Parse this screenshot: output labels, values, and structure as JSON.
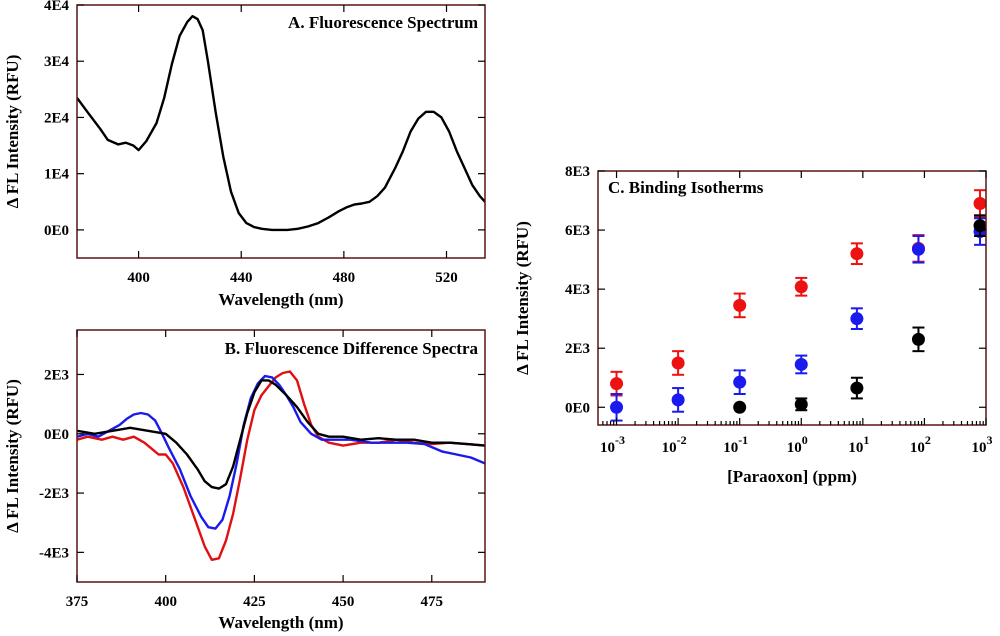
{
  "chart_data": [
    {
      "id": "A",
      "type": "line",
      "title": "A. Fluorescence Spectrum",
      "xlabel": "Wavelength (nm)",
      "ylabel": "Δ FL Intensity (RFU)",
      "xlim": [
        376,
        535
      ],
      "ylim": [
        -5000,
        40000
      ],
      "xticks": [
        400,
        440,
        480,
        520
      ],
      "xtick_labels": [
        "400",
        "440",
        "480",
        "520"
      ],
      "yticks": [
        0,
        10000,
        20000,
        30000,
        40000
      ],
      "ytick_labels": [
        "0E0",
        "1E4",
        "2E4",
        "3E4",
        "4E4"
      ],
      "grid": false,
      "series": [
        {
          "color": "#000000",
          "x": [
            376,
            380,
            385,
            388,
            392,
            395,
            398,
            400,
            403,
            407,
            410,
            413,
            416,
            419,
            421,
            423,
            425,
            427,
            430,
            433,
            436,
            439,
            442,
            445,
            448,
            452,
            455,
            458,
            462,
            466,
            470,
            474,
            478,
            481,
            484,
            487,
            490,
            493,
            496,
            500,
            503,
            506,
            509,
            512,
            515,
            518,
            521,
            524,
            527,
            530,
            533,
            535
          ],
          "y": [
            23500,
            21000,
            18000,
            16000,
            15200,
            15500,
            15000,
            14200,
            15800,
            19000,
            23500,
            29500,
            34500,
            37000,
            38000,
            37500,
            35500,
            30000,
            21000,
            13000,
            6800,
            3000,
            1200,
            500,
            200,
            0,
            0,
            0,
            200,
            600,
            1200,
            2200,
            3300,
            4000,
            4500,
            4700,
            5000,
            6000,
            7500,
            11000,
            14000,
            17500,
            19800,
            21000,
            21000,
            20000,
            17500,
            14000,
            11000,
            8000,
            6000,
            5000
          ]
        }
      ]
    },
    {
      "id": "B",
      "type": "line",
      "title": "B. Fluorescence Difference Spectra",
      "xlabel": "Wavelength (nm)",
      "ylabel": "Δ FL Intensity (RFU)",
      "xlim": [
        375,
        490
      ],
      "ylim": [
        -5000,
        3500
      ],
      "xticks": [
        375,
        400,
        425,
        450,
        475
      ],
      "xtick_labels": [
        "375",
        "400",
        "425",
        "450",
        "475"
      ],
      "yticks": [
        -4000,
        -2000,
        0,
        2000
      ],
      "ytick_labels": [
        "-4E3",
        "-2E3",
        "0E0",
        "2E3"
      ],
      "grid": false,
      "series": [
        {
          "color": "#e01010",
          "x": [
            375,
            378,
            382,
            385,
            388,
            391,
            394,
            396,
            398,
            400,
            402,
            405,
            408,
            411,
            413,
            415,
            417,
            419,
            421,
            423,
            425,
            427,
            429,
            431,
            433,
            435,
            437,
            439,
            441,
            443,
            446,
            450,
            455,
            460,
            465,
            470,
            475,
            480,
            485,
            490
          ],
          "y": [
            -200,
            -100,
            -200,
            -100,
            -200,
            -100,
            -300,
            -500,
            -700,
            -700,
            -1000,
            -1800,
            -2800,
            -3800,
            -4250,
            -4200,
            -3600,
            -2700,
            -1500,
            -200,
            800,
            1300,
            1600,
            1900,
            2050,
            2100,
            1800,
            1000,
            300,
            -100,
            -300,
            -400,
            -300,
            -300,
            -200,
            -300,
            -350,
            -300,
            -350,
            -400
          ]
        },
        {
          "color": "#1a1aee",
          "x": [
            375,
            378,
            381,
            384,
            387,
            389,
            391,
            393,
            395,
            397,
            399,
            401,
            404,
            407,
            410,
            412,
            414,
            416,
            418,
            420,
            422,
            424,
            426,
            428,
            430,
            432,
            434,
            436,
            438,
            441,
            444,
            448,
            452,
            458,
            463,
            468,
            473,
            478,
            482,
            486,
            490
          ],
          "y": [
            -100,
            0,
            -100,
            100,
            300,
            500,
            650,
            700,
            650,
            450,
            0,
            -500,
            -1200,
            -2100,
            -2800,
            -3150,
            -3200,
            -2900,
            -2100,
            -1000,
            300,
            1200,
            1700,
            1950,
            1900,
            1650,
            1300,
            900,
            400,
            0,
            -200,
            -200,
            -200,
            -300,
            -300,
            -300,
            -350,
            -600,
            -700,
            -800,
            -1000
          ]
        },
        {
          "color": "#000000",
          "x": [
            375,
            380,
            385,
            390,
            395,
            400,
            403,
            406,
            409,
            411,
            413,
            415,
            417,
            419,
            421,
            423,
            425,
            427,
            429,
            431,
            434,
            437,
            440,
            443,
            446,
            450,
            455,
            460,
            465,
            470,
            475,
            480,
            485,
            490
          ],
          "y": [
            100,
            0,
            100,
            200,
            100,
            0,
            -300,
            -700,
            -1200,
            -1600,
            -1800,
            -1850,
            -1700,
            -1100,
            -200,
            700,
            1400,
            1800,
            1800,
            1650,
            1300,
            900,
            400,
            0,
            -100,
            -100,
            -200,
            -150,
            -200,
            -200,
            -300,
            -300,
            -350,
            -400
          ]
        }
      ]
    },
    {
      "id": "C",
      "type": "scatter",
      "title": "C. Binding Isotherms",
      "xlabel": "[Paraoxon] (ppm)",
      "ylabel": "Δ FL Intensity (RFU)",
      "xscale": "log",
      "xlim": [
        0.0005,
        1000
      ],
      "ylim": [
        -600,
        8000
      ],
      "xticks": [
        0.001,
        0.01,
        0.1,
        1,
        10,
        100,
        1000
      ],
      "xtick_labels": [
        {
          "base": "10",
          "exp": "-3"
        },
        {
          "base": "10",
          "exp": "-2"
        },
        {
          "base": "10",
          "exp": "-1"
        },
        {
          "base": "10",
          "exp": "0"
        },
        {
          "base": "10",
          "exp": "1"
        },
        {
          "base": "10",
          "exp": "2"
        },
        {
          "base": "10",
          "exp": "3"
        }
      ],
      "yticks": [
        0,
        2000,
        4000,
        6000,
        8000
      ],
      "ytick_labels": [
        "0E0",
        "2E3",
        "4E3",
        "6E3",
        "8E3"
      ],
      "grid": false,
      "series": [
        {
          "color": "#ee1111",
          "x": [
            0.001,
            0.01,
            0.1,
            1,
            8,
            80,
            800
          ],
          "y": [
            800,
            1500,
            3450,
            4080,
            5200,
            5380,
            6900
          ],
          "err": [
            400,
            400,
            400,
            300,
            350,
            450,
            450
          ]
        },
        {
          "color": "#1a1aee",
          "x": [
            0.001,
            0.01,
            0.1,
            1,
            8,
            80,
            800
          ],
          "y": [
            0,
            250,
            850,
            1450,
            3000,
            5350,
            5950
          ],
          "err": [
            450,
            400,
            400,
            300,
            350,
            450,
            450
          ]
        },
        {
          "color": "#000000",
          "x": [
            0.1,
            1,
            8,
            80,
            800
          ],
          "y": [
            0,
            100,
            650,
            2300,
            6150
          ],
          "err": [
            0,
            200,
            350,
            400,
            350
          ]
        }
      ]
    }
  ]
}
